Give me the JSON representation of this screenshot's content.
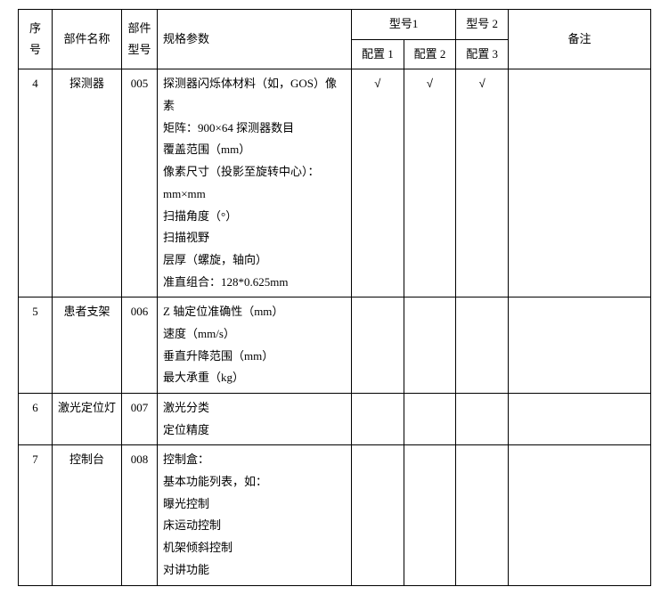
{
  "header": {
    "seq": "序号",
    "partName": "部件名称",
    "partModel": "部件型号",
    "spec": "规格参数",
    "model1": "型号1",
    "model2": "型号 2",
    "cfg1": "配置 1",
    "cfg2": "配置 2",
    "cfg3": "配置 3",
    "remark": "备注"
  },
  "rows": [
    {
      "seq": "4",
      "name": "探测器",
      "model": "005",
      "specs": [
        "探测器闪烁体材料（如，GOS）像素",
        "矩阵：900×64 探测器数目",
        "覆盖范围（mm）",
        "像素尺寸（投影至旋转中心）：",
        "mm×mm",
        "扫描角度（°）",
        "扫描视野",
        "层厚（螺旋，轴向）",
        "准直组合：128*0.625mm"
      ],
      "cfg1": "√",
      "cfg2": "√",
      "cfg3": "√",
      "remark": ""
    },
    {
      "seq": "5",
      "name": "患者支架",
      "model": "006",
      "specs": [
        "Z 轴定位准确性（mm）",
        "速度（mm/s）",
        "垂直升降范围（mm）",
        "最大承重（kg）"
      ],
      "cfg1": "",
      "cfg2": "",
      "cfg3": "",
      "remark": ""
    },
    {
      "seq": "6",
      "name": "激光定位灯",
      "model": "007",
      "specs": [
        "激光分类",
        "定位精度"
      ],
      "cfg1": "",
      "cfg2": "",
      "cfg3": "",
      "remark": ""
    },
    {
      "seq": "7",
      "name": "控制台",
      "model": "008",
      "specs": [
        "控制盒：",
        "基本功能列表，如：",
        "曝光控制",
        "床运动控制",
        "机架倾斜控制",
        "对讲功能"
      ],
      "cfg1": "",
      "cfg2": "",
      "cfg3": "",
      "remark": ""
    }
  ]
}
